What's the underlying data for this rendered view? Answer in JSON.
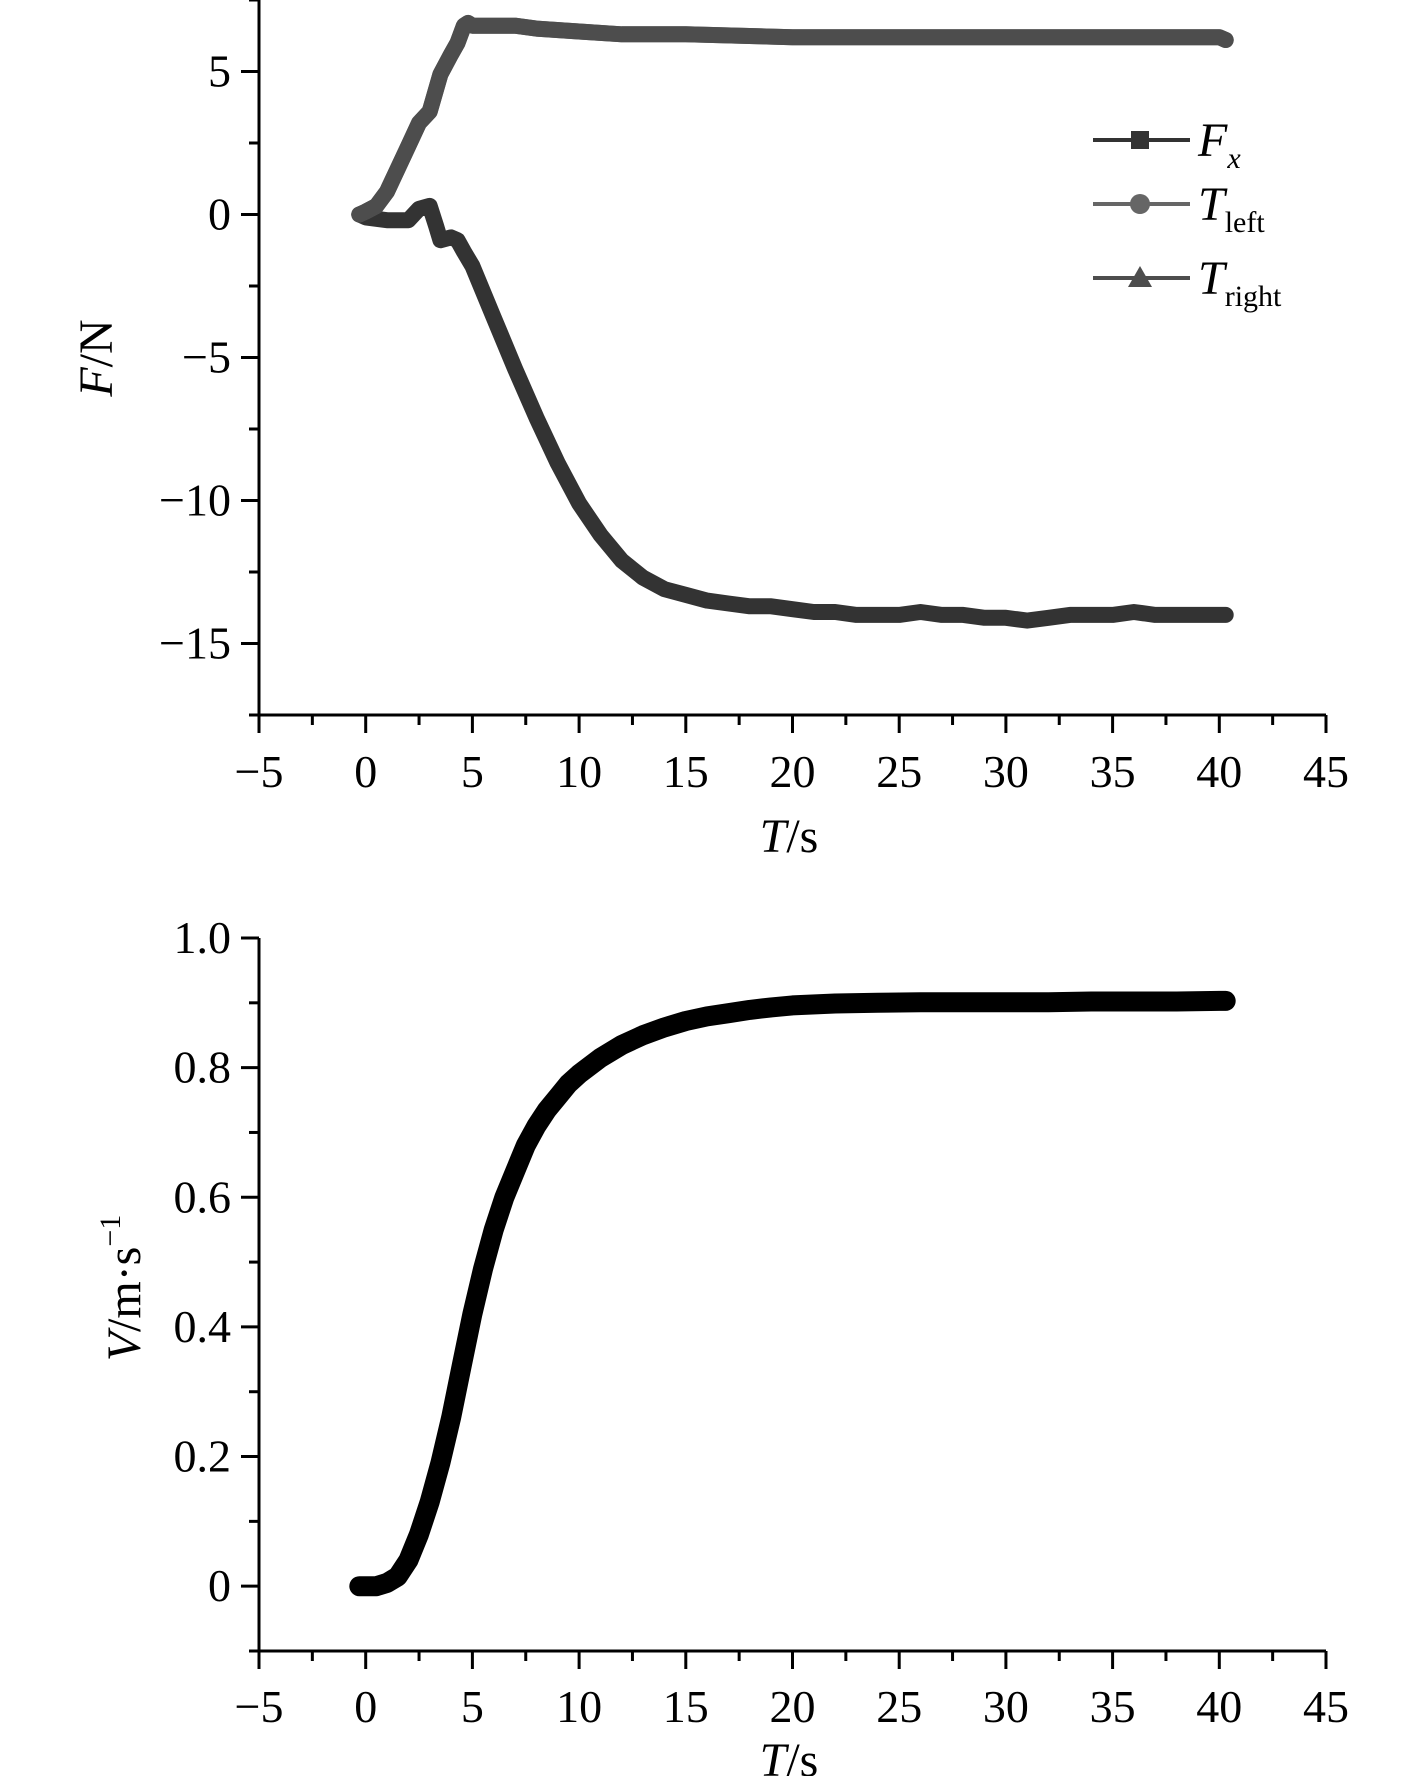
{
  "chart_data": [
    {
      "type": "line",
      "xlabel": {
        "var": "T",
        "unit": "/s"
      },
      "ylabel": {
        "var": "F",
        "unit": "/N"
      },
      "xlim": [
        -5,
        45
      ],
      "ylim": [
        -17.5,
        7.5
      ],
      "xticks": [
        -5,
        0,
        5,
        10,
        15,
        20,
        25,
        30,
        35,
        40,
        45
      ],
      "xtick_labels": [
        "−5",
        "0",
        "5",
        "10",
        "15",
        "20",
        "25",
        "30",
        "35",
        "40",
        "45"
      ],
      "yticks": [
        -15,
        -10,
        -5,
        0,
        5
      ],
      "ytick_labels": [
        "−15",
        "−10",
        "−5",
        "0",
        "5"
      ],
      "legend": [
        {
          "key": "fx",
          "main": "F",
          "sub": "x",
          "marker": "square",
          "color": "#333333"
        },
        {
          "key": "tleft",
          "main": "T",
          "sub": "left",
          "marker": "circle",
          "color": "#666666"
        },
        {
          "key": "tright",
          "main": "T",
          "sub": "right",
          "marker": "triangle",
          "color": "#4d4d4d"
        }
      ],
      "series": [
        {
          "name": "Fx",
          "color": "#333333",
          "x": [
            -0.3,
            0,
            1,
            2,
            2.5,
            3,
            3.3,
            3.5,
            4,
            4.3,
            4.6,
            5,
            6,
            7,
            8,
            9,
            10,
            11,
            12,
            13,
            14,
            15,
            16,
            17,
            18,
            19,
            20,
            21,
            22,
            23,
            24,
            25,
            26,
            27,
            28,
            29,
            30,
            31,
            32,
            33,
            34,
            35,
            36,
            37,
            38,
            39,
            40,
            40.3
          ],
          "y": [
            0,
            -0.1,
            -0.2,
            -0.2,
            0.2,
            0.3,
            -0.4,
            -0.9,
            -0.8,
            -0.9,
            -1.3,
            -1.8,
            -3.6,
            -5.4,
            -7.1,
            -8.7,
            -10.1,
            -11.2,
            -12.1,
            -12.7,
            -13.1,
            -13.3,
            -13.5,
            -13.6,
            -13.7,
            -13.7,
            -13.8,
            -13.9,
            -13.9,
            -14.0,
            -14.0,
            -14.0,
            -13.9,
            -14.0,
            -14.0,
            -14.1,
            -14.1,
            -14.2,
            -14.1,
            -14.0,
            -14.0,
            -14.0,
            -13.9,
            -14.0,
            -14.0,
            -14.0,
            -14.0,
            -14.0
          ]
        },
        {
          "name": "Tleft",
          "color": "#666666",
          "x": [
            -0.3,
            0,
            0.5,
            1,
            1.5,
            2,
            2.5,
            3,
            3.5,
            4,
            4.3,
            4.6,
            4.8,
            5,
            6,
            7,
            8,
            10,
            12,
            15,
            20,
            25,
            30,
            35,
            40,
            40.3
          ],
          "y": [
            0,
            0.1,
            0.3,
            0.8,
            1.6,
            2.4,
            3.2,
            3.6,
            4.9,
            5.6,
            6.0,
            6.6,
            6.7,
            6.6,
            6.6,
            6.6,
            6.5,
            6.4,
            6.3,
            6.3,
            6.2,
            6.2,
            6.2,
            6.2,
            6.2,
            6.1
          ]
        },
        {
          "name": "Tright",
          "color": "#4d4d4d",
          "x": [
            -0.3,
            0,
            0.5,
            1,
            1.5,
            2,
            2.5,
            3,
            3.5,
            4,
            4.3,
            4.6,
            4.8,
            5,
            6,
            7,
            8,
            10,
            12,
            15,
            20,
            25,
            30,
            35,
            40,
            40.3
          ],
          "y": [
            0,
            0.1,
            0.3,
            0.8,
            1.6,
            2.4,
            3.2,
            3.6,
            4.9,
            5.6,
            6.0,
            6.6,
            6.7,
            6.6,
            6.6,
            6.6,
            6.5,
            6.4,
            6.3,
            6.3,
            6.2,
            6.2,
            6.2,
            6.2,
            6.2,
            6.1
          ]
        }
      ]
    },
    {
      "type": "line",
      "xlabel": {
        "var": "T",
        "unit": "/s"
      },
      "ylabel": {
        "var": "V",
        "unit": "/m·s",
        "sup": "−1"
      },
      "xlim": [
        -5,
        45
      ],
      "ylim": [
        -0.1,
        1.0
      ],
      "xticks": [
        -5,
        0,
        5,
        10,
        15,
        20,
        25,
        30,
        35,
        40,
        45
      ],
      "xtick_labels": [
        "−5",
        "0",
        "5",
        "10",
        "15",
        "20",
        "25",
        "30",
        "35",
        "40",
        "45"
      ],
      "yticks": [
        0,
        0.2,
        0.4,
        0.6,
        0.8,
        1.0
      ],
      "ytick_labels": [
        "0",
        "0.2",
        "0.4",
        "0.6",
        "0.8",
        "1.0"
      ],
      "series": [
        {
          "name": "V",
          "color": "#000000",
          "x": [
            -0.3,
            0,
            0.5,
            1,
            1.5,
            2,
            2.5,
            3,
            3.5,
            4,
            4.5,
            5,
            5.5,
            6,
            6.5,
            7,
            7.5,
            8,
            8.5,
            9,
            9.5,
            10,
            11,
            12,
            13,
            14,
            15,
            16,
            17,
            18,
            19,
            20,
            22,
            24,
            26,
            28,
            30,
            32,
            34,
            36,
            38,
            40,
            40.3
          ],
          "y": [
            0,
            0,
            0,
            0.005,
            0.015,
            0.04,
            0.08,
            0.13,
            0.19,
            0.26,
            0.34,
            0.42,
            0.49,
            0.55,
            0.6,
            0.64,
            0.68,
            0.71,
            0.735,
            0.755,
            0.775,
            0.79,
            0.815,
            0.835,
            0.85,
            0.862,
            0.872,
            0.879,
            0.884,
            0.889,
            0.893,
            0.896,
            0.899,
            0.9,
            0.901,
            0.901,
            0.901,
            0.901,
            0.902,
            0.902,
            0.902,
            0.903,
            0.903
          ]
        }
      ]
    }
  ]
}
